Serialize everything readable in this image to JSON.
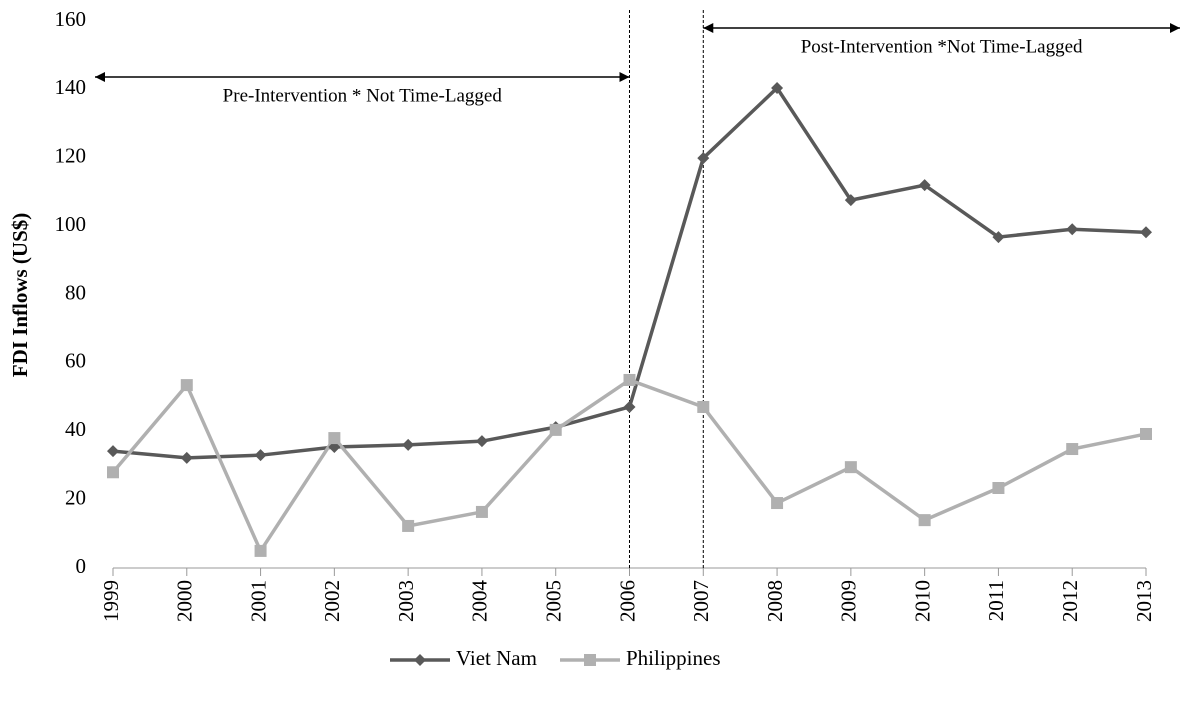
{
  "chart_data": {
    "type": "line",
    "y_label": "FDI Inflows (US$)",
    "categories": [
      "1999",
      "2000",
      "2001",
      "2002",
      "2003",
      "2004",
      "2005",
      "2006",
      "2007",
      "2008",
      "2009",
      "2010",
      "2011",
      "2012",
      "2013"
    ],
    "series": [
      {
        "name": "Viet Nam",
        "color": "#595959",
        "marker": "diamond",
        "values": [
          34.2,
          32.2,
          33,
          35.4,
          36,
          37.1,
          41.2,
          47.1,
          119.9,
          140.4,
          107.6,
          112,
          96.8,
          99.1,
          98.2
        ]
      },
      {
        "name": "Philippines",
        "color": "#b0b0b0",
        "marker": "square",
        "values": [
          28,
          53.5,
          5,
          38,
          12.3,
          16.4,
          40.4,
          55,
          47.1,
          19,
          29.5,
          14,
          23.4,
          34.8,
          39.2
        ]
      }
    ],
    "ylim": [
      0,
      160
    ],
    "yticks": [
      0,
      20,
      40,
      60,
      80,
      100,
      120,
      140,
      160
    ],
    "grid": false,
    "legend": "bottom",
    "annotations": [
      {
        "text": "Pre-Intervention * Not Time-Lagged",
        "at": "2006",
        "direction": "left"
      },
      {
        "text": "Post-Intervention *Not Time-Lagged",
        "at": "2007",
        "direction": "right"
      }
    ]
  }
}
